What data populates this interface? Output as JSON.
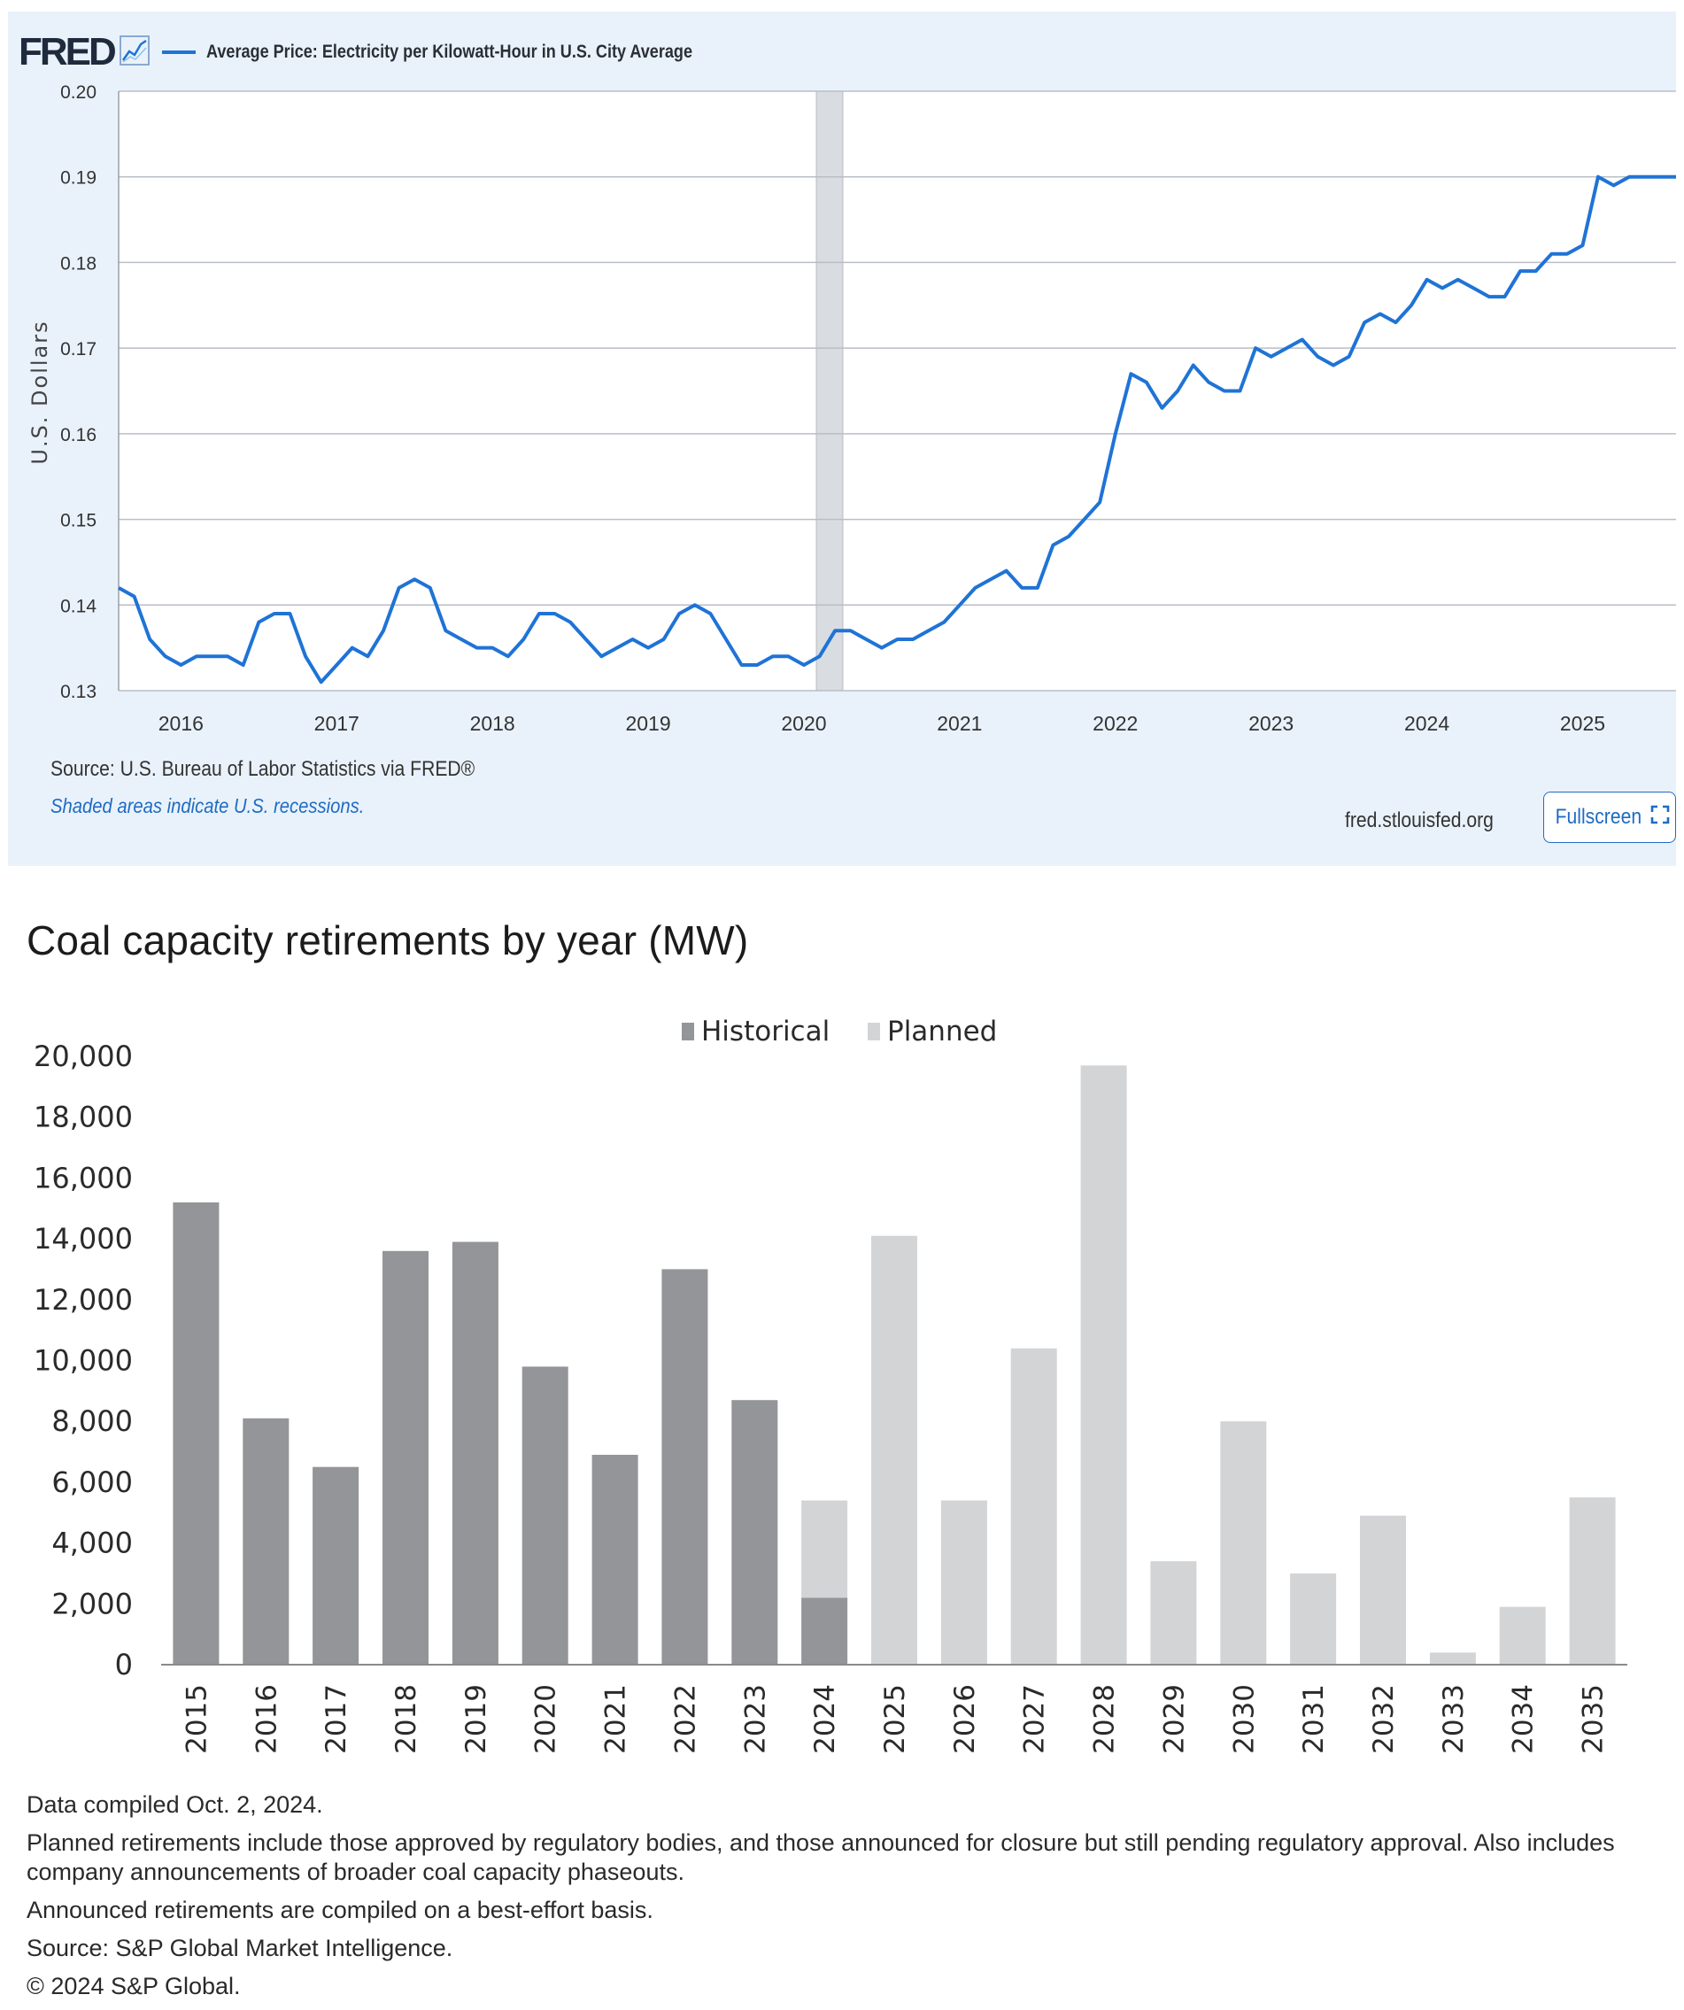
{
  "fred": {
    "logo_text": "FRED",
    "logo_icon": "chart-trend-icon",
    "series_title": "Average Price: Electricity per Kilowatt-Hour in U.S. City Average",
    "source": "Source: U.S. Bureau of Labor Statistics via FRED®",
    "shaded_note": "Shaded areas indicate U.S. recessions.",
    "site": "fred.stlouisfed.org",
    "fullscreen_label": "Fullscreen",
    "fullscreen_icon": "expand-icon",
    "line_color": "#1f73d6",
    "recession_color": "#d9dde2"
  },
  "coal": {
    "title": "Coal capacity retirements by year (MW)",
    "notes": [
      "Data compiled Oct. 2, 2024.",
      "Planned retirements include those approved by regulatory bodies, and those announced for closure but still pending regulatory approval. Also includes company announcements of broader coal capacity phaseouts.",
      "Announced retirements are compiled on a best-effort basis.",
      "Source: S&P Global Market Intelligence.",
      "© 2024 S&P Global."
    ],
    "historical_color": "#939598",
    "planned_color": "#d3d4d6"
  },
  "chart_data": [
    {
      "type": "line",
      "title": "Average Price: Electricity per Kilowatt-Hour in U.S. City Average",
      "ylabel": "U.S. Dollars",
      "xlabel": "",
      "ylim": [
        0.13,
        0.2
      ],
      "xlim": [
        2015.6,
        2025.6
      ],
      "yticks": [
        "0.13",
        "0.14",
        "0.15",
        "0.16",
        "0.17",
        "0.18",
        "0.19",
        "0.20"
      ],
      "xticks": [
        "2016",
        "2017",
        "2018",
        "2019",
        "2020",
        "2021",
        "2022",
        "2023",
        "2024",
        "2025"
      ],
      "recession": [
        2020.08,
        2020.25
      ],
      "series": [
        {
          "name": "Average Price: Electricity per Kilowatt-Hour in U.S. City Average",
          "x": [
            2015.6,
            2015.7,
            2015.8,
            2015.9,
            2016.0,
            2016.1,
            2016.2,
            2016.3,
            2016.4,
            2016.5,
            2016.6,
            2016.7,
            2016.8,
            2016.9,
            2017.0,
            2017.1,
            2017.2,
            2017.3,
            2017.4,
            2017.5,
            2017.6,
            2017.7,
            2017.8,
            2017.9,
            2018.0,
            2018.1,
            2018.2,
            2018.3,
            2018.4,
            2018.5,
            2018.6,
            2018.7,
            2018.8,
            2018.9,
            2019.0,
            2019.1,
            2019.2,
            2019.3,
            2019.4,
            2019.5,
            2019.6,
            2019.7,
            2019.8,
            2019.9,
            2020.0,
            2020.1,
            2020.2,
            2020.3,
            2020.4,
            2020.5,
            2020.6,
            2020.7,
            2020.8,
            2020.9,
            2021.0,
            2021.1,
            2021.2,
            2021.3,
            2021.4,
            2021.5,
            2021.6,
            2021.7,
            2021.8,
            2021.9,
            2022.0,
            2022.1,
            2022.2,
            2022.3,
            2022.4,
            2022.5,
            2022.6,
            2022.7,
            2022.8,
            2022.9,
            2023.0,
            2023.1,
            2023.2,
            2023.3,
            2023.4,
            2023.5,
            2023.6,
            2023.7,
            2023.8,
            2023.9,
            2024.0,
            2024.1,
            2024.2,
            2024.3,
            2024.4,
            2024.5,
            2024.6,
            2024.7,
            2024.8,
            2024.9,
            2025.0,
            2025.1,
            2025.2,
            2025.3,
            2025.4,
            2025.5,
            2025.6
          ],
          "y": [
            0.142,
            0.141,
            0.136,
            0.134,
            0.133,
            0.134,
            0.134,
            0.134,
            0.133,
            0.138,
            0.139,
            0.139,
            0.134,
            0.131,
            0.133,
            0.135,
            0.134,
            0.137,
            0.142,
            0.143,
            0.142,
            0.137,
            0.136,
            0.135,
            0.135,
            0.134,
            0.136,
            0.139,
            0.139,
            0.138,
            0.136,
            0.134,
            0.135,
            0.136,
            0.135,
            0.136,
            0.139,
            0.14,
            0.139,
            0.136,
            0.133,
            0.133,
            0.134,
            0.134,
            0.133,
            0.134,
            0.137,
            0.137,
            0.136,
            0.135,
            0.136,
            0.136,
            0.137,
            0.138,
            0.14,
            0.142,
            0.143,
            0.144,
            0.142,
            0.142,
            0.147,
            0.148,
            0.15,
            0.152,
            0.16,
            0.167,
            0.166,
            0.163,
            0.165,
            0.168,
            0.166,
            0.165,
            0.165,
            0.17,
            0.169,
            0.17,
            0.171,
            0.169,
            0.168,
            0.169,
            0.173,
            0.174,
            0.173,
            0.175,
            0.178,
            0.177,
            0.178,
            0.177,
            0.176,
            0.176,
            0.179,
            0.179,
            0.181,
            0.181,
            0.182,
            0.19,
            0.189,
            0.19,
            0.19,
            0.19,
            0.19
          ]
        }
      ]
    },
    {
      "type": "bar",
      "title": "Coal capacity retirements by year (MW)",
      "xlabel": "",
      "ylabel": "",
      "ylim": [
        0,
        20000
      ],
      "yticks": [
        "0",
        "2,000",
        "4,000",
        "6,000",
        "8,000",
        "10,000",
        "12,000",
        "14,000",
        "16,000",
        "18,000",
        "20,000"
      ],
      "stacked": true,
      "legend_position": "top-center",
      "categories": [
        "2015",
        "2016",
        "2017",
        "2018",
        "2019",
        "2020",
        "2021",
        "2022",
        "2023",
        "2024",
        "2025",
        "2026",
        "2027",
        "2028",
        "2029",
        "2030",
        "2031",
        "2032",
        "2033",
        "2034",
        "2035"
      ],
      "series": [
        {
          "name": "Historical",
          "values": [
            15200,
            8100,
            6500,
            13600,
            13900,
            9800,
            6900,
            13000,
            8700,
            2200,
            0,
            0,
            0,
            0,
            0,
            0,
            0,
            0,
            0,
            0,
            0
          ]
        },
        {
          "name": "Planned",
          "values": [
            0,
            0,
            0,
            0,
            0,
            0,
            0,
            0,
            0,
            3200,
            14100,
            5400,
            10400,
            19700,
            3400,
            8000,
            3000,
            4900,
            400,
            1900,
            5500
          ]
        }
      ]
    }
  ]
}
